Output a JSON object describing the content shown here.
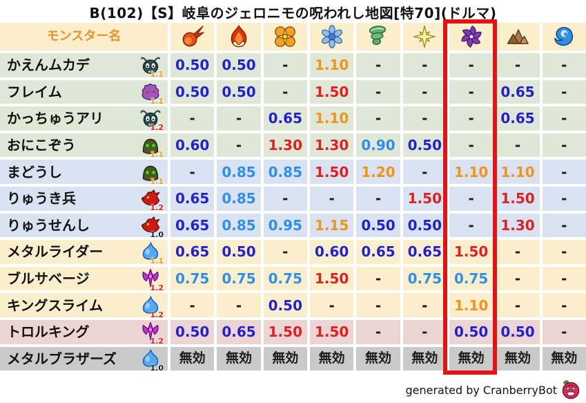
{
  "title": "B(102)【S】岐阜のジェロニモの呪われし地図[特70](ドルマ)",
  "watermark": {
    "text": "generated by CranberryBot",
    "icon": "cranberry-icon"
  },
  "colors": {
    "header_bg": "#faeecb",
    "row_green": "#dfe7d6",
    "row_blue": "#d8e2f0",
    "row_cream": "#faeecd",
    "row_pink": "#ecd4d2",
    "row_gray": "#c9c9c9",
    "grid_gap": "#ffffff",
    "header_label": "#e8912c",
    "value_strong_resist": "#2222cc",
    "value_resist": "#2e8fe6",
    "value_weak": "#f0931c",
    "value_very_weak": "#e02020",
    "value_neutral": "#1a1a1a",
    "highlight_box": "#e41212",
    "level_orange": "#f09a1e",
    "level_red": "#e02020",
    "level_black": "#222222"
  },
  "table": {
    "name_header": "モンスター名",
    "element_columns": [
      "fireball-icon",
      "flame-icon",
      "burst-icon",
      "snowflake-icon",
      "tornado-icon",
      "spark-icon",
      "pinwheel-icon",
      "mountain-icon",
      "wave-icon"
    ],
    "highlighted_column": 7,
    "null_value": "-",
    "immune_value": "無効",
    "rows": [
      {
        "name": "かえんムカデ",
        "monster_icon": "centipede-icon",
        "level": "1.1",
        "level_color": "orange",
        "row_color": "green",
        "values": [
          "0.50",
          "0.50",
          "-",
          "1.10",
          "-",
          "-",
          "-",
          "-",
          "-"
        ]
      },
      {
        "name": "フレイム",
        "monster_icon": "flame-spirit-icon",
        "level": "1.1",
        "level_color": "orange",
        "row_color": "green",
        "values": [
          "0.50",
          "0.50",
          "-",
          "1.50",
          "-",
          "-",
          "-",
          "0.65",
          "-"
        ]
      },
      {
        "name": "かっちゅうアリ",
        "monster_icon": "ant-icon",
        "level": "1.2",
        "level_color": "red",
        "row_color": "green",
        "values": [
          "-",
          "-",
          "0.65",
          "1.10",
          "-",
          "-",
          "-",
          "0.65",
          "-"
        ]
      },
      {
        "name": "おにこぞう",
        "monster_icon": "hood-icon",
        "level": "1.1",
        "level_color": "orange",
        "row_color": "green",
        "values": [
          "0.60",
          "-",
          "1.30",
          "1.30",
          "0.90",
          "0.50",
          "-",
          "-",
          "-"
        ]
      },
      {
        "name": "まどうし",
        "monster_icon": "hood-icon",
        "level": "1.1",
        "level_color": "orange",
        "row_color": "blue",
        "values": [
          "-",
          "0.85",
          "0.85",
          "1.50",
          "1.20",
          "-",
          "1.10",
          "1.10",
          "-"
        ]
      },
      {
        "name": "りゅうき兵",
        "monster_icon": "dragon-icon",
        "level": "1.2",
        "level_color": "red",
        "row_color": "blue",
        "values": [
          "0.65",
          "0.85",
          "-",
          "-",
          "-",
          "1.50",
          "-",
          "1.50",
          "-"
        ]
      },
      {
        "name": "りゅうせんし",
        "monster_icon": "dragon-icon",
        "level": "1.0",
        "level_color": "black",
        "row_color": "blue",
        "values": [
          "0.65",
          "0.85",
          "0.95",
          "1.15",
          "0.50",
          "0.50",
          "-",
          "1.30",
          "-"
        ]
      },
      {
        "name": "メタルライダー",
        "monster_icon": "slime-icon",
        "level": "1.1",
        "level_color": "orange",
        "row_color": "cream",
        "values": [
          "0.65",
          "0.50",
          "-",
          "0.60",
          "0.65",
          "0.65",
          "1.50",
          "-",
          "-"
        ]
      },
      {
        "name": "ブルサベージ",
        "monster_icon": "demon-icon",
        "level": "1.2",
        "level_color": "red",
        "row_color": "cream",
        "values": [
          "0.75",
          "0.75",
          "0.75",
          "1.50",
          "-",
          "0.75",
          "0.75",
          "-",
          "-"
        ]
      },
      {
        "name": "キングスライム",
        "monster_icon": "slime-icon",
        "level": "1.2",
        "level_color": "red",
        "row_color": "cream",
        "values": [
          "-",
          "-",
          "0.50",
          "-",
          "-",
          "-",
          "1.10",
          "-",
          "-"
        ]
      },
      {
        "name": "トロルキング",
        "monster_icon": "demon-icon",
        "level": "1.2",
        "level_color": "red",
        "row_color": "pink",
        "values": [
          "0.50",
          "0.65",
          "1.50",
          "1.50",
          "-",
          "-",
          "0.50",
          "0.50",
          "-"
        ]
      },
      {
        "name": "メタルブラザーズ",
        "monster_icon": "slime-icon",
        "level": "1.0",
        "level_color": "black",
        "row_color": "gray",
        "values": [
          "無効",
          "無効",
          "無効",
          "無効",
          "無効",
          "無効",
          "無効",
          "無効",
          "無効"
        ]
      }
    ]
  }
}
